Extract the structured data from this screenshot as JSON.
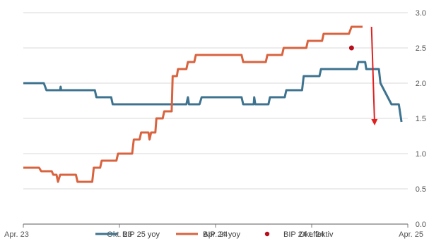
{
  "chart_data": {
    "type": "line",
    "x_ticks": [
      "Apr. 23",
      "Okt. 23",
      "Apr. 24",
      "Okt. 24",
      "Apr. 25"
    ],
    "y_ticks": [
      "0.0",
      "0.5",
      "1.0",
      "1.5",
      "2.0",
      "2.5",
      "3.0"
    ],
    "ylim": [
      0,
      3
    ],
    "xlim": [
      "2023-04-01",
      "2025-04-01"
    ],
    "grid": "horizontal",
    "y_axis_side": "right",
    "legend_position": "bottom",
    "series": [
      {
        "name": "BIP 25 yoy",
        "color": "#3e7390",
        "points": [
          [
            "2023-04-01",
            2.0
          ],
          [
            "2023-05-10",
            2.0
          ],
          [
            "2023-05-15",
            1.9
          ],
          [
            "2023-06-10",
            1.9
          ],
          [
            "2023-06-11",
            1.95
          ],
          [
            "2023-06-12",
            1.9
          ],
          [
            "2023-08-15",
            1.9
          ],
          [
            "2023-08-18",
            1.8
          ],
          [
            "2023-09-15",
            1.8
          ],
          [
            "2023-09-18",
            1.7
          ],
          [
            "2024-02-05",
            1.7
          ],
          [
            "2024-02-08",
            1.8
          ],
          [
            "2024-02-10",
            1.7
          ],
          [
            "2024-03-01",
            1.7
          ],
          [
            "2024-03-05",
            1.8
          ],
          [
            "2024-05-20",
            1.8
          ],
          [
            "2024-05-23",
            1.7
          ],
          [
            "2024-06-12",
            1.7
          ],
          [
            "2024-06-13",
            1.8
          ],
          [
            "2024-06-15",
            1.7
          ],
          [
            "2024-07-10",
            1.7
          ],
          [
            "2024-07-13",
            1.8
          ],
          [
            "2024-08-10",
            1.8
          ],
          [
            "2024-08-13",
            1.9
          ],
          [
            "2024-09-12",
            1.9
          ],
          [
            "2024-09-15",
            2.1
          ],
          [
            "2024-10-15",
            2.1
          ],
          [
            "2024-10-18",
            2.2
          ],
          [
            "2024-12-25",
            2.2
          ],
          [
            "2024-12-28",
            2.3
          ],
          [
            "2025-01-10",
            2.3
          ],
          [
            "2025-01-12",
            2.2
          ],
          [
            "2025-02-05",
            2.2
          ],
          [
            "2025-02-08",
            2.0
          ],
          [
            "2025-02-15",
            1.9
          ],
          [
            "2025-02-22",
            1.8
          ],
          [
            "2025-03-01",
            1.7
          ],
          [
            "2025-03-15",
            1.7
          ],
          [
            "2025-03-20",
            1.45
          ]
        ]
      },
      {
        "name": "BIP 24 yoy",
        "color": "#d9633f",
        "points": [
          [
            "2023-04-01",
            0.8
          ],
          [
            "2023-05-01",
            0.8
          ],
          [
            "2023-05-05",
            0.75
          ],
          [
            "2023-05-25",
            0.75
          ],
          [
            "2023-05-28",
            0.7
          ],
          [
            "2023-06-03",
            0.7
          ],
          [
            "2023-06-06",
            0.6
          ],
          [
            "2023-06-10",
            0.7
          ],
          [
            "2023-07-10",
            0.7
          ],
          [
            "2023-07-13",
            0.6
          ],
          [
            "2023-08-10",
            0.6
          ],
          [
            "2023-08-13",
            0.8
          ],
          [
            "2023-08-25",
            0.8
          ],
          [
            "2023-08-28",
            0.9
          ],
          [
            "2023-09-25",
            0.9
          ],
          [
            "2023-09-28",
            1.0
          ],
          [
            "2023-10-25",
            1.0
          ],
          [
            "2023-10-28",
            1.2
          ],
          [
            "2023-11-08",
            1.2
          ],
          [
            "2023-11-11",
            1.3
          ],
          [
            "2023-11-25",
            1.3
          ],
          [
            "2023-11-27",
            1.2
          ],
          [
            "2023-11-30",
            1.3
          ],
          [
            "2023-12-08",
            1.3
          ],
          [
            "2023-12-10",
            1.5
          ],
          [
            "2023-12-22",
            1.5
          ],
          [
            "2023-12-25",
            1.6
          ],
          [
            "2024-01-08",
            1.6
          ],
          [
            "2024-01-10",
            2.1
          ],
          [
            "2024-01-18",
            2.1
          ],
          [
            "2024-01-20",
            2.2
          ],
          [
            "2024-02-05",
            2.2
          ],
          [
            "2024-02-08",
            2.3
          ],
          [
            "2024-02-20",
            2.3
          ],
          [
            "2024-02-23",
            2.4
          ],
          [
            "2024-04-05",
            2.4
          ],
          [
            "2024-04-08",
            2.4
          ],
          [
            "2024-04-10",
            2.4
          ],
          [
            "2024-05-20",
            2.4
          ],
          [
            "2024-05-23",
            2.3
          ],
          [
            "2024-07-05",
            2.3
          ],
          [
            "2024-07-08",
            2.4
          ],
          [
            "2024-08-05",
            2.4
          ],
          [
            "2024-08-08",
            2.5
          ],
          [
            "2024-09-20",
            2.5
          ],
          [
            "2024-09-23",
            2.6
          ],
          [
            "2024-10-20",
            2.6
          ],
          [
            "2024-10-23",
            2.7
          ],
          [
            "2024-12-10",
            2.7
          ],
          [
            "2024-12-15",
            2.8
          ],
          [
            "2025-01-05",
            2.8
          ]
        ]
      }
    ],
    "markers": [
      {
        "name": "BIP 24 effektiv",
        "color": "#b80d1d",
        "x": "2024-12-15",
        "y": 2.5
      }
    ],
    "annotations": [
      {
        "type": "arrow",
        "color": "#e02020",
        "from": [
          "2025-01-22",
          2.8
        ],
        "to": [
          "2025-01-28",
          1.4
        ]
      }
    ],
    "legend": [
      {
        "label": "BIP 25 yoy",
        "kind": "line",
        "color": "#3e7390"
      },
      {
        "label": "BIP 24 yoy",
        "kind": "line",
        "color": "#d9633f"
      },
      {
        "label": "BIP 24 effektiv",
        "kind": "dot",
        "color": "#b80d1d"
      }
    ]
  }
}
